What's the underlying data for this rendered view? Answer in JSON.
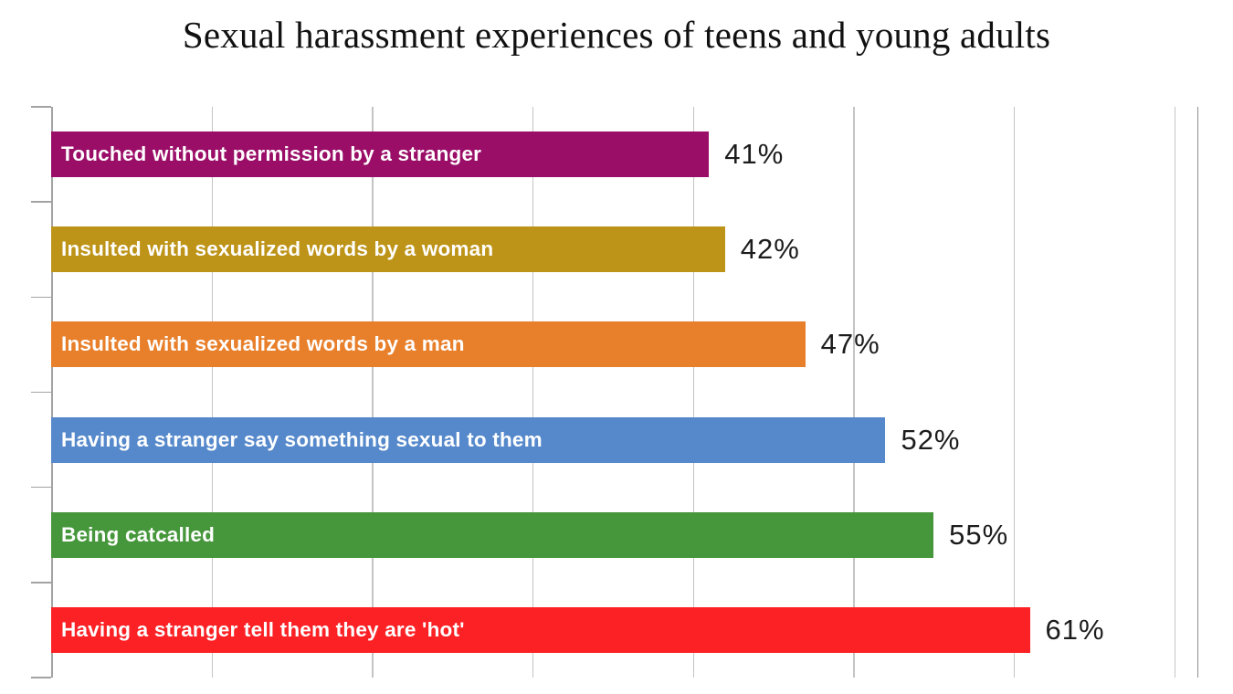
{
  "title": "Sexual harassment experiences of teens and young adults",
  "chart_data": {
    "type": "bar",
    "orientation": "horizontal",
    "title": "Sexual harassment experiences of teens and young adults",
    "categories": [
      "Touched without permission by a stranger",
      "Insulted with sexualized words by a woman",
      "Insulted with sexualized words by a man",
      "Having a stranger say something sexual to them",
      "Being catcalled",
      "Having a stranger tell them they are 'hot'"
    ],
    "values": [
      41,
      42,
      47,
      52,
      55,
      61
    ],
    "value_labels": [
      "41%",
      "42%",
      "47%",
      "52%",
      "55%",
      "61%"
    ],
    "bar_colors": [
      "#9a0e68",
      "#bd9318",
      "#e87f2a",
      "#5689cb",
      "#46973b",
      "#fc2125"
    ],
    "xlabel": "",
    "ylabel": "",
    "xlim": [
      0,
      71.5
    ],
    "gridline_step_percent": 10,
    "grid": "vertical-gridlines",
    "legend": "none",
    "bar_label_position": "inside-left",
    "bar_label_color": "#ffffff",
    "value_label_position": "outside-right",
    "value_label_color": "#1c1c1c",
    "axis_color": "#a3a3a3",
    "gridline_color": "#c4c4c4",
    "plot_right_border_color": "#8f8f8f"
  }
}
